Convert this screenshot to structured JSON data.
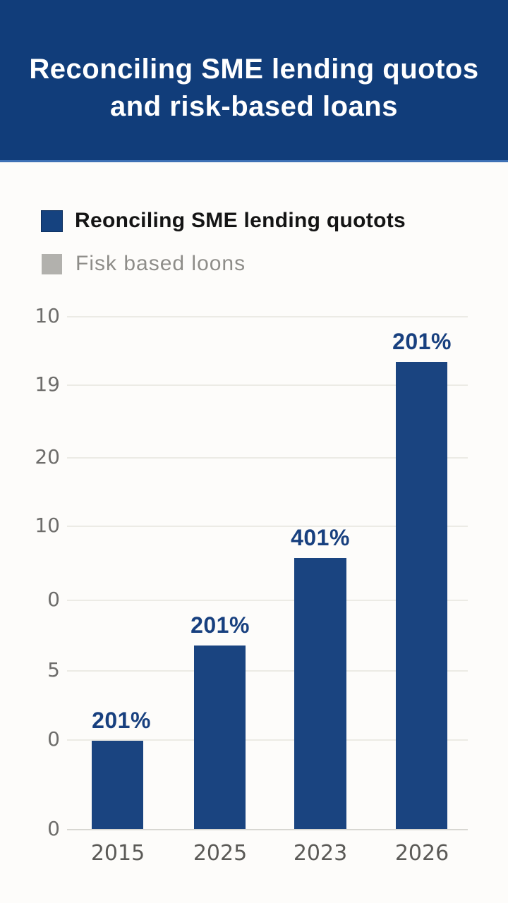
{
  "header": {
    "title_line1": "Reconciling SME lending quotos",
    "title_line2": "and risk-based loans"
  },
  "legend": {
    "items": [
      {
        "label": "Reonciling SME lending quotots",
        "color": "#15427f"
      },
      {
        "label": "Fisk based loons",
        "color": "#b2b1ad"
      }
    ]
  },
  "colors": {
    "banner_background": "#113d7a",
    "banner_text": "#ffffff",
    "bar": "#1a4480",
    "bar_label_text": "#18407f",
    "legend_blue": "#15427f",
    "legend_gray": "#b2b1ad",
    "gridline": "#ecebe5",
    "tick_text": "#6e6d6b"
  },
  "chart_data": {
    "type": "bar",
    "title": "Reconciling SME lending quotos and risk-based loans",
    "series_name": "Reonciling SME lending quotots",
    "categories": [
      "2015",
      "2025",
      "2023",
      "2026"
    ],
    "bar_labels": [
      "201%",
      "201%",
      "401%",
      "201%"
    ],
    "values_relative_height": [
      0.17,
      0.36,
      0.53,
      0.91
    ],
    "yticks": [
      "10",
      "19",
      "20",
      "10",
      "0",
      "5",
      "0",
      "0"
    ],
    "xlabel": "",
    "ylabel": "",
    "grid": true,
    "legend_position": "top-left",
    "bar_color": "#1a4480"
  }
}
